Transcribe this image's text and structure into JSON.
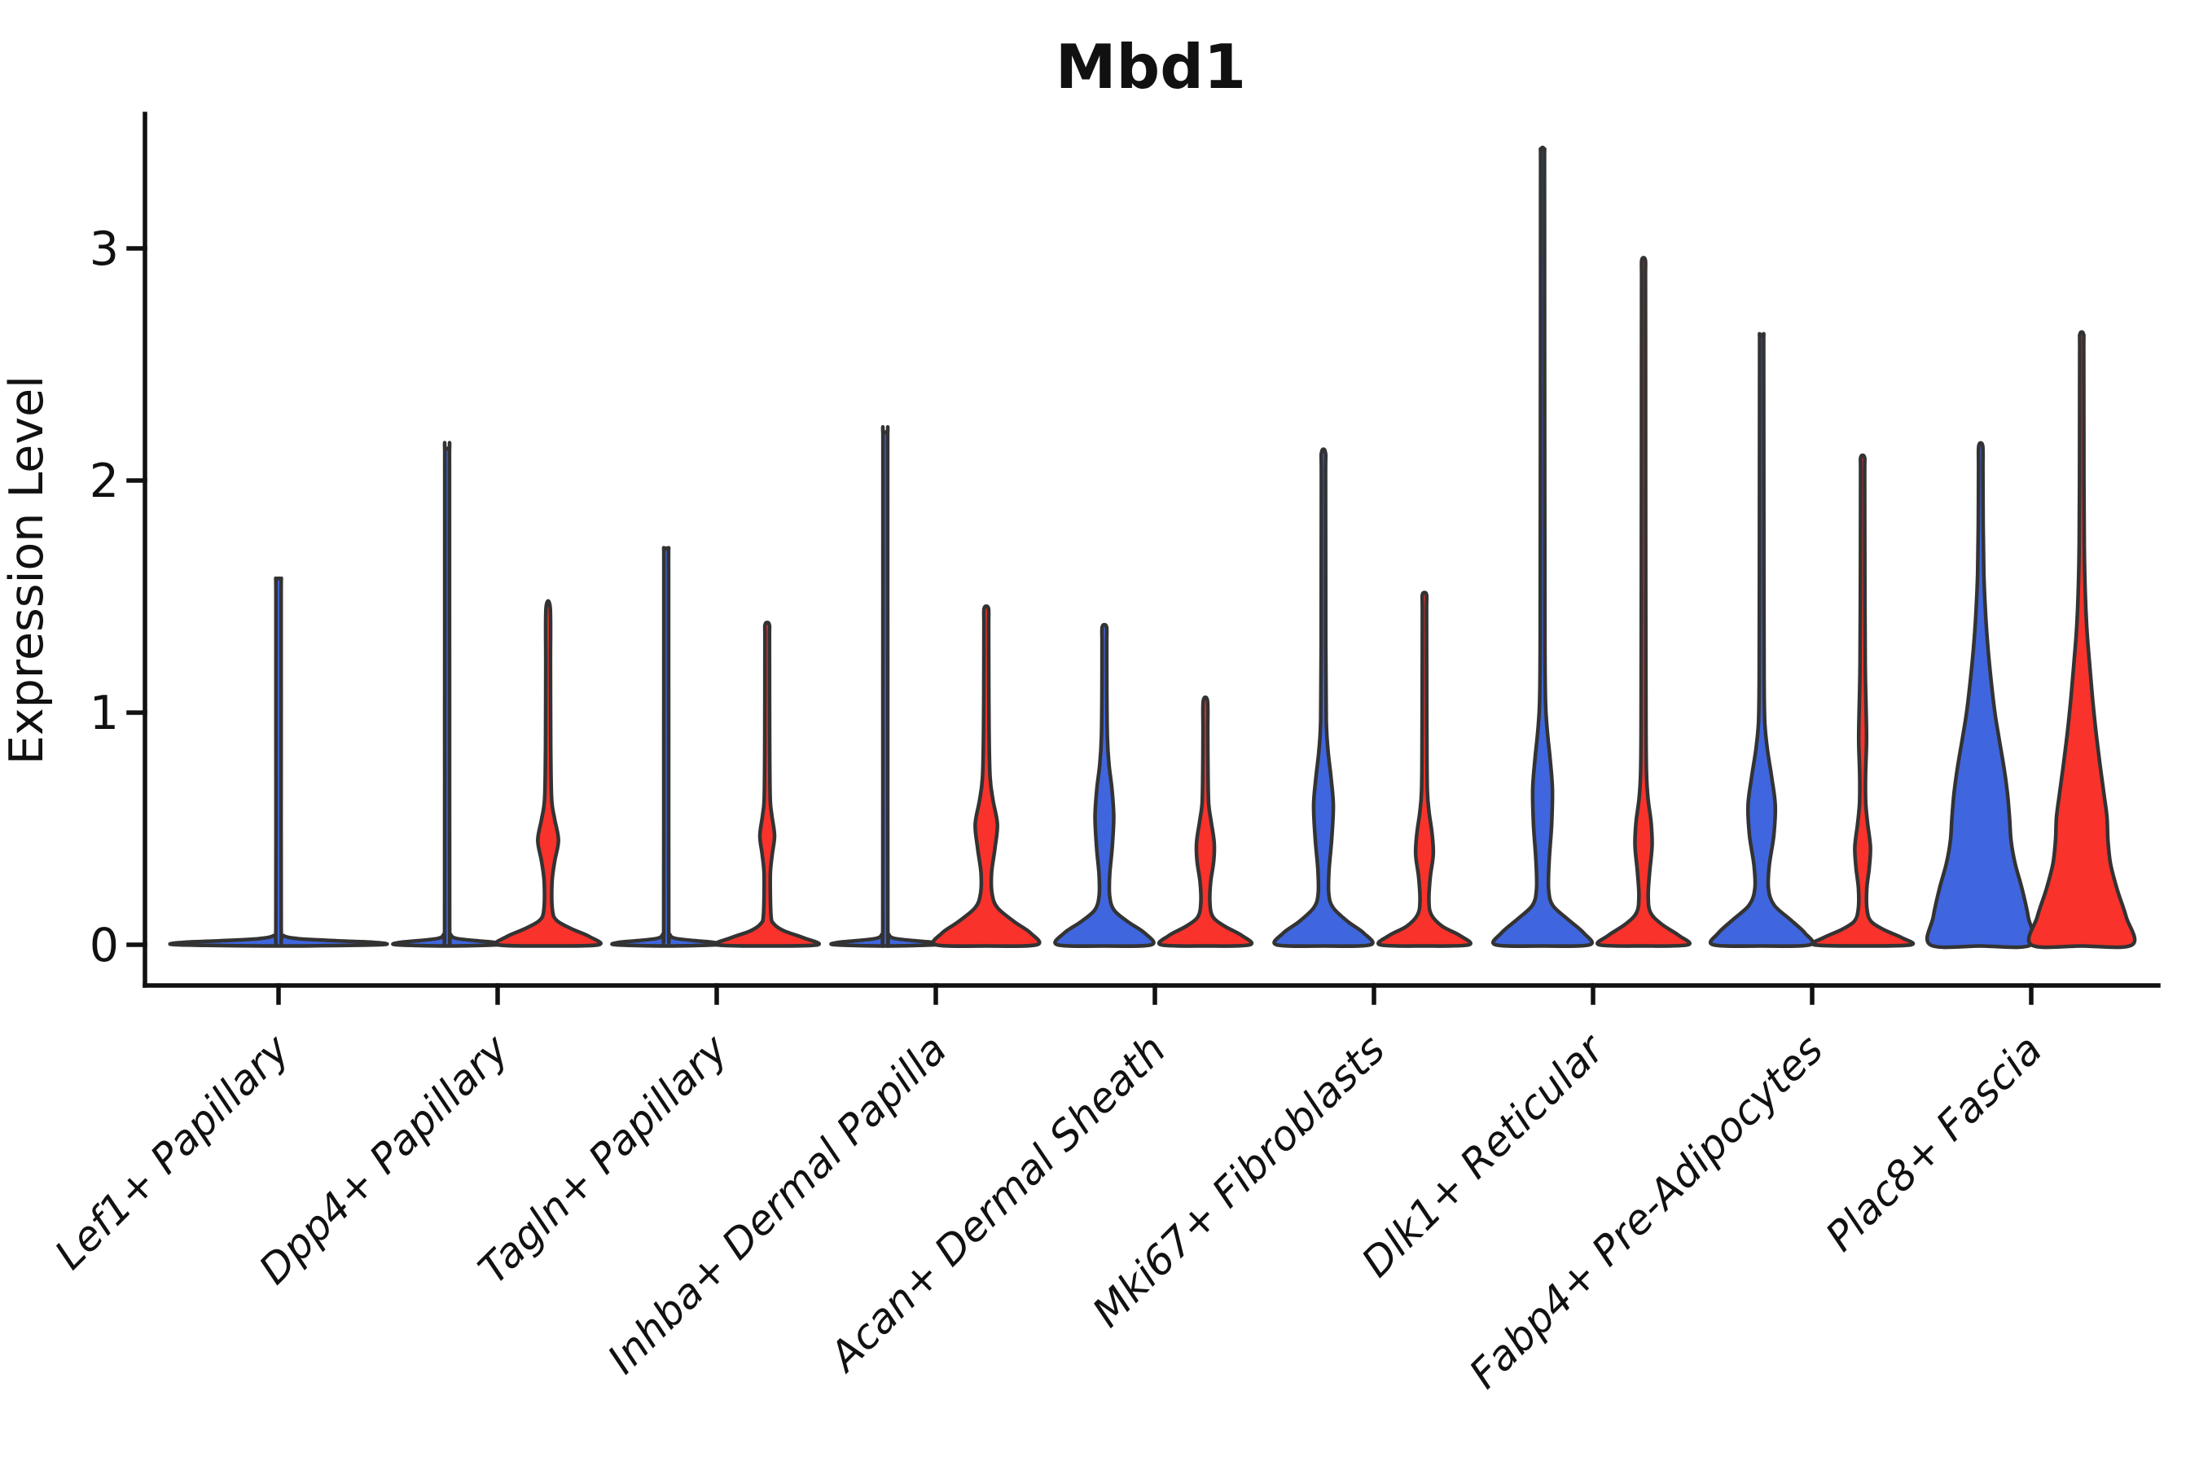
{
  "title": "Mbd1",
  "y_axis": {
    "label": "Expression Level",
    "tick_labels": [
      "0",
      "1",
      "2",
      "3"
    ],
    "tick_values": [
      0,
      1,
      2,
      3
    ]
  },
  "x_axis": {
    "categories": [
      "Lef1+ Papillary",
      "Dpp4+ Papillary",
      "Tagln+ Papillary",
      "Inhba+ Dermal Papilla",
      "Acan+ Dermal Sheath",
      "Mki67+ Fibroblasts",
      "Dlk1+ Reticular",
      "Fabp4+ Pre-Adipocytes",
      "Plac8+ Fascia"
    ]
  },
  "colors": {
    "blue": "#3F66DE",
    "red": "#F9322B",
    "edge": "#333333",
    "axis": "#111111",
    "background": "#FFFFFF"
  },
  "chart_data": {
    "type": "violin",
    "title": "Mbd1",
    "xlabel": "",
    "ylabel": "Expression Level",
    "yticks": [
      0,
      1,
      2,
      3
    ],
    "ylim": [
      -0.3,
      3.58
    ],
    "grid": false,
    "legend_position": "none",
    "groups": [
      "blue",
      "red"
    ],
    "categories": [
      "Lef1+ Papillary",
      "Dpp4+ Papillary",
      "Tagln+ Papillary",
      "Inhba+ Dermal Papilla",
      "Acan+ Dermal Sheath",
      "Mki67+ Fibroblasts",
      "Dlk1+ Reticular",
      "Fabp4+ Pre-Adipocytes",
      "Plac8+ Fascia"
    ],
    "violins": [
      {
        "category_index": 0,
        "category": "Lef1+ Papillary",
        "group": "blue",
        "side": "full",
        "max_expression": 1.57,
        "profile": [
          [
            0,
            1.0
          ],
          [
            0.01,
            0.96
          ],
          [
            0.017,
            0.6
          ],
          [
            0.026,
            0.2
          ],
          [
            0.04,
            0.045
          ],
          [
            0.07,
            0.027
          ],
          [
            0.8,
            0.026
          ],
          [
            1.5,
            0.026
          ],
          [
            1.57,
            0.023
          ]
        ]
      },
      {
        "category_index": 1,
        "category": "Dpp4+ Papillary",
        "group": "blue",
        "side": "left",
        "max_expression": 2.13,
        "profile": [
          [
            0,
            1.0
          ],
          [
            0.01,
            0.95
          ],
          [
            0.018,
            0.55
          ],
          [
            0.028,
            0.17
          ],
          [
            0.045,
            0.07
          ],
          [
            0.08,
            0.05
          ],
          [
            1.0,
            0.048
          ],
          [
            2.06,
            0.046
          ],
          [
            2.13,
            0.042
          ]
        ]
      },
      {
        "category_index": 1,
        "category": "Dpp4+ Papillary",
        "group": "red",
        "side": "right",
        "max_expression": 1.45,
        "profile": [
          [
            0,
            1.0
          ],
          [
            0.035,
            0.82
          ],
          [
            0.07,
            0.45
          ],
          [
            0.105,
            0.17
          ],
          [
            0.15,
            0.085
          ],
          [
            0.27,
            0.078
          ],
          [
            0.36,
            0.13
          ],
          [
            0.45,
            0.205
          ],
          [
            0.54,
            0.13
          ],
          [
            0.63,
            0.07
          ],
          [
            0.85,
            0.052
          ],
          [
            1.2,
            0.047
          ],
          [
            1.45,
            0.042
          ]
        ]
      },
      {
        "category_index": 2,
        "category": "Tagln+ Papillary",
        "group": "blue",
        "side": "left",
        "max_expression": 1.7,
        "profile": [
          [
            0,
            1.0
          ],
          [
            0.01,
            0.95
          ],
          [
            0.018,
            0.55
          ],
          [
            0.028,
            0.17
          ],
          [
            0.045,
            0.07
          ],
          [
            0.08,
            0.05
          ],
          [
            0.9,
            0.048
          ],
          [
            1.63,
            0.046
          ],
          [
            1.7,
            0.042
          ]
        ]
      },
      {
        "category_index": 2,
        "category": "Tagln+ Papillary",
        "group": "red",
        "side": "right",
        "max_expression": 1.38,
        "profile": [
          [
            0,
            1.0
          ],
          [
            0.03,
            0.72
          ],
          [
            0.06,
            0.33
          ],
          [
            0.09,
            0.13
          ],
          [
            0.13,
            0.075
          ],
          [
            0.3,
            0.062
          ],
          [
            0.39,
            0.1
          ],
          [
            0.47,
            0.145
          ],
          [
            0.56,
            0.09
          ],
          [
            0.64,
            0.058
          ],
          [
            0.9,
            0.048
          ],
          [
            1.31,
            0.045
          ],
          [
            1.38,
            0.041
          ]
        ]
      },
      {
        "category_index": 3,
        "category": "Inhba+ Dermal Papilla",
        "group": "blue",
        "side": "left",
        "max_expression": 2.2,
        "profile": [
          [
            0,
            1.0
          ],
          [
            0.01,
            0.95
          ],
          [
            0.018,
            0.55
          ],
          [
            0.028,
            0.17
          ],
          [
            0.045,
            0.07
          ],
          [
            0.08,
            0.05
          ],
          [
            1.1,
            0.048
          ],
          [
            2.13,
            0.046
          ],
          [
            2.2,
            0.042
          ]
        ]
      },
      {
        "category_index": 3,
        "category": "Inhba+ Dermal Papilla",
        "group": "red",
        "side": "right",
        "max_expression": 1.45,
        "profile": [
          [
            0,
            1.0
          ],
          [
            0.05,
            0.88
          ],
          [
            0.1,
            0.55
          ],
          [
            0.16,
            0.22
          ],
          [
            0.22,
            0.115
          ],
          [
            0.31,
            0.105
          ],
          [
            0.42,
            0.175
          ],
          [
            0.52,
            0.22
          ],
          [
            0.62,
            0.135
          ],
          [
            0.72,
            0.075
          ],
          [
            0.92,
            0.055
          ],
          [
            1.2,
            0.048
          ],
          [
            1.38,
            0.046
          ],
          [
            1.45,
            0.042
          ]
        ]
      },
      {
        "category_index": 4,
        "category": "Acan+ Dermal Sheath",
        "group": "blue",
        "side": "left",
        "max_expression": 1.37,
        "profile": [
          [
            0,
            0.93
          ],
          [
            0.05,
            0.8
          ],
          [
            0.1,
            0.46
          ],
          [
            0.15,
            0.19
          ],
          [
            0.21,
            0.105
          ],
          [
            0.3,
            0.105
          ],
          [
            0.42,
            0.155
          ],
          [
            0.55,
            0.185
          ],
          [
            0.67,
            0.15
          ],
          [
            0.78,
            0.09
          ],
          [
            0.9,
            0.058
          ],
          [
            1.1,
            0.048
          ],
          [
            1.3,
            0.046
          ],
          [
            1.37,
            0.042
          ]
        ]
      },
      {
        "category_index": 4,
        "category": "Acan+ Dermal Sheath",
        "group": "red",
        "side": "right",
        "max_expression": 1.05,
        "profile": [
          [
            0,
            0.88
          ],
          [
            0.04,
            0.72
          ],
          [
            0.08,
            0.38
          ],
          [
            0.12,
            0.15
          ],
          [
            0.18,
            0.09
          ],
          [
            0.27,
            0.105
          ],
          [
            0.36,
            0.165
          ],
          [
            0.44,
            0.175
          ],
          [
            0.53,
            0.115
          ],
          [
            0.61,
            0.065
          ],
          [
            0.75,
            0.052
          ],
          [
            0.92,
            0.047
          ],
          [
            1.05,
            0.042
          ]
        ]
      },
      {
        "category_index": 5,
        "category": "Mki67+ Fibroblasts",
        "group": "blue",
        "side": "left",
        "max_expression": 2.12,
        "profile": [
          [
            0,
            0.93
          ],
          [
            0.05,
            0.8
          ],
          [
            0.1,
            0.48
          ],
          [
            0.16,
            0.19
          ],
          [
            0.22,
            0.105
          ],
          [
            0.32,
            0.11
          ],
          [
            0.46,
            0.165
          ],
          [
            0.6,
            0.195
          ],
          [
            0.72,
            0.15
          ],
          [
            0.84,
            0.088
          ],
          [
            0.97,
            0.055
          ],
          [
            1.3,
            0.045
          ],
          [
            2.0,
            0.042
          ],
          [
            2.12,
            0.039
          ]
        ]
      },
      {
        "category_index": 5,
        "category": "Mki67+ Fibroblasts",
        "group": "red",
        "side": "right",
        "max_expression": 1.51,
        "profile": [
          [
            0,
            0.88
          ],
          [
            0.04,
            0.7
          ],
          [
            0.08,
            0.35
          ],
          [
            0.13,
            0.135
          ],
          [
            0.19,
            0.088
          ],
          [
            0.29,
            0.115
          ],
          [
            0.39,
            0.175
          ],
          [
            0.48,
            0.15
          ],
          [
            0.57,
            0.092
          ],
          [
            0.66,
            0.058
          ],
          [
            0.85,
            0.048
          ],
          [
            1.2,
            0.044
          ],
          [
            1.45,
            0.042
          ],
          [
            1.51,
            0.039
          ]
        ]
      },
      {
        "category_index": 6,
        "category": "Dlk1+ Reticular",
        "group": "blue",
        "side": "left",
        "max_expression": 3.42,
        "profile": [
          [
            0,
            0.93
          ],
          [
            0.05,
            0.82
          ],
          [
            0.11,
            0.5
          ],
          [
            0.17,
            0.2
          ],
          [
            0.24,
            0.12
          ],
          [
            0.36,
            0.13
          ],
          [
            0.52,
            0.18
          ],
          [
            0.67,
            0.195
          ],
          [
            0.8,
            0.15
          ],
          [
            0.93,
            0.09
          ],
          [
            1.05,
            0.058
          ],
          [
            1.3,
            0.047
          ],
          [
            2.2,
            0.042
          ],
          [
            3.3,
            0.038
          ],
          [
            3.42,
            0.035
          ]
        ]
      },
      {
        "category_index": 6,
        "category": "Dlk1+ Reticular",
        "group": "red",
        "side": "right",
        "max_expression": 2.95,
        "profile": [
          [
            0,
            0.88
          ],
          [
            0.04,
            0.7
          ],
          [
            0.09,
            0.35
          ],
          [
            0.14,
            0.135
          ],
          [
            0.21,
            0.092
          ],
          [
            0.31,
            0.12
          ],
          [
            0.43,
            0.17
          ],
          [
            0.53,
            0.148
          ],
          [
            0.63,
            0.088
          ],
          [
            0.74,
            0.058
          ],
          [
            0.95,
            0.048
          ],
          [
            1.5,
            0.043
          ],
          [
            2.5,
            0.04
          ],
          [
            2.87,
            0.038
          ],
          [
            2.95,
            0.035
          ]
        ]
      },
      {
        "category_index": 7,
        "category": "Fabp4+ Pre-Adipocytes",
        "group": "blue",
        "side": "left",
        "max_expression": 2.62,
        "profile": [
          [
            0,
            0.96
          ],
          [
            0.05,
            0.86
          ],
          [
            0.11,
            0.56
          ],
          [
            0.17,
            0.25
          ],
          [
            0.24,
            0.135
          ],
          [
            0.34,
            0.15
          ],
          [
            0.47,
            0.24
          ],
          [
            0.6,
            0.27
          ],
          [
            0.72,
            0.2
          ],
          [
            0.84,
            0.115
          ],
          [
            0.96,
            0.062
          ],
          [
            1.15,
            0.048
          ],
          [
            1.8,
            0.043
          ],
          [
            2.55,
            0.04
          ],
          [
            2.62,
            0.036
          ]
        ]
      },
      {
        "category_index": 7,
        "category": "Fabp4+ Pre-Adipocytes",
        "group": "red",
        "side": "right",
        "max_expression": 2.1,
        "profile": [
          [
            0,
            0.96
          ],
          [
            0.03,
            0.78
          ],
          [
            0.065,
            0.42
          ],
          [
            0.1,
            0.17
          ],
          [
            0.15,
            0.088
          ],
          [
            0.24,
            0.082
          ],
          [
            0.33,
            0.13
          ],
          [
            0.42,
            0.155
          ],
          [
            0.52,
            0.1
          ],
          [
            0.61,
            0.062
          ],
          [
            0.73,
            0.058
          ],
          [
            0.88,
            0.078
          ],
          [
            1.02,
            0.068
          ],
          [
            1.2,
            0.052
          ],
          [
            1.6,
            0.044
          ],
          [
            2.03,
            0.041
          ],
          [
            2.1,
            0.037
          ]
        ]
      },
      {
        "category_index": 8,
        "category": "Plac8+ Fascia",
        "group": "blue",
        "side": "left",
        "max_expression": 2.15,
        "profile": [
          [
            0,
            1.0
          ],
          [
            0.12,
            0.94
          ],
          [
            0.24,
            0.82
          ],
          [
            0.35,
            0.68
          ],
          [
            0.45,
            0.6
          ],
          [
            0.55,
            0.57
          ],
          [
            0.65,
            0.53
          ],
          [
            0.75,
            0.47
          ],
          [
            0.88,
            0.37
          ],
          [
            1.0,
            0.28
          ],
          [
            1.15,
            0.2
          ],
          [
            1.3,
            0.135
          ],
          [
            1.45,
            0.09
          ],
          [
            1.6,
            0.062
          ],
          [
            1.8,
            0.048
          ],
          [
            2.05,
            0.043
          ],
          [
            2.15,
            0.038
          ]
        ]
      },
      {
        "category_index": 8,
        "category": "Plac8+ Fascia",
        "group": "red",
        "side": "right",
        "max_expression": 2.63,
        "profile": [
          [
            0,
            1.0
          ],
          [
            0.12,
            0.88
          ],
          [
            0.24,
            0.7
          ],
          [
            0.35,
            0.57
          ],
          [
            0.45,
            0.52
          ],
          [
            0.55,
            0.5
          ],
          [
            0.65,
            0.44
          ],
          [
            0.78,
            0.36
          ],
          [
            0.92,
            0.28
          ],
          [
            1.06,
            0.215
          ],
          [
            1.2,
            0.16
          ],
          [
            1.35,
            0.105
          ],
          [
            1.5,
            0.072
          ],
          [
            1.7,
            0.052
          ],
          [
            2.0,
            0.044
          ],
          [
            2.55,
            0.04
          ],
          [
            2.63,
            0.036
          ]
        ]
      }
    ]
  }
}
